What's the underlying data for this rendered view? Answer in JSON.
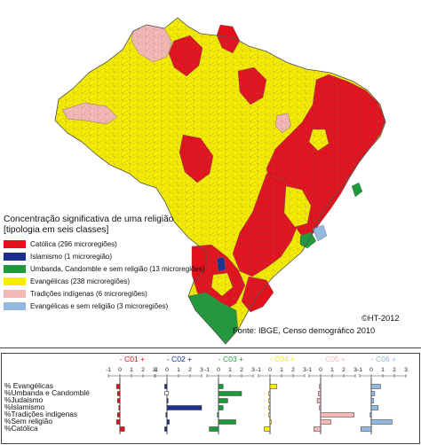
{
  "colors": {
    "catolica": "#e3111b",
    "islamismo": "#1a2f8f",
    "umbanda": "#1f9a3b",
    "evangelicas": "#f6ec00",
    "tradicoes": "#f5b8b5",
    "evang_sem_religiao": "#93b9e0",
    "border": "#777777"
  },
  "legend": {
    "title_line1": "Concentração significativa de uma religião",
    "title_line2": "[tipologia em seis classes]",
    "items": [
      {
        "label": "Católica (296 microregiões)",
        "color": "#e3111b"
      },
      {
        "label": "Islamismo (1 microregião)",
        "color": "#1a2f8f"
      },
      {
        "label": "Umbanda, Candomble e sem religião (13 microregiões)",
        "color": "#1f9a3b"
      },
      {
        "label": "Evangélicas (238 microregiões)",
        "color": "#f6ec00"
      },
      {
        "label": "Tradições indígenas (6 microregiões)",
        "color": "#f5b8b5"
      },
      {
        "label": "Evangélicas e sem religião (3 microregiões)",
        "color": "#93b9e0"
      }
    ]
  },
  "credits": {
    "copyright": "©HT-2012",
    "source": "Fonte: IBGE, Censo demográfico 2010"
  },
  "chart_data": {
    "type": "bar",
    "scale_ticks": [
      "-1",
      "0",
      "1",
      "2",
      "3"
    ],
    "variables": [
      "% Evangélicas",
      "%Umbanda e Candomblé",
      "%Judaismo",
      "%Islamismo",
      "%Tradições indigenas",
      "%Sem religião",
      "%Católica"
    ],
    "series": [
      {
        "name": "- C01 +",
        "color": "#e3111b",
        "values": [
          -0.3,
          -0.2,
          -0.2,
          -0.1,
          -0.2,
          -0.3,
          0.4
        ]
      },
      {
        "name": "- C02 +",
        "color": "#1a2f8f",
        "values": [
          -0.2,
          0.0,
          0.1,
          3.0,
          -0.1,
          0.2,
          -0.2
        ]
      },
      {
        "name": "- C03 +",
        "color": "#1f9a3b",
        "values": [
          0.4,
          2.0,
          0.8,
          0.4,
          -0.1,
          1.5,
          -0.8
        ]
      },
      {
        "name": "- C04 +",
        "color": "#f6ec00",
        "values": [
          0.6,
          -0.1,
          -0.1,
          -0.1,
          -0.1,
          0.1,
          -0.5
        ]
      },
      {
        "name": "- C05 +",
        "color": "#f5b8b5",
        "values": [
          -0.1,
          -0.2,
          -0.3,
          -0.1,
          2.9,
          0.9,
          -0.6
        ]
      },
      {
        "name": "- C06 +",
        "color": "#93b9e0",
        "values": [
          0.8,
          0.3,
          0.2,
          0.6,
          -0.1,
          1.8,
          -0.9
        ]
      }
    ]
  }
}
